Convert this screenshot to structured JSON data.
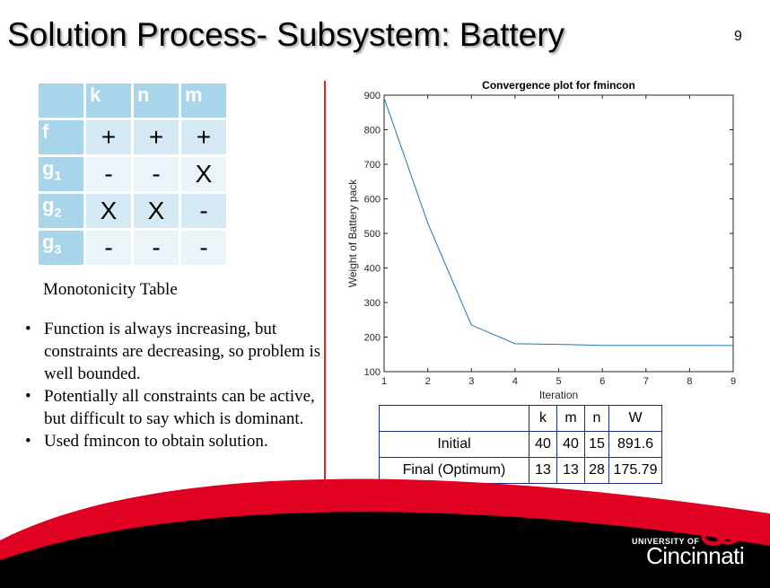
{
  "title": "Solution Process- Subsystem: Battery",
  "page_number": "9",
  "monotonicity": {
    "header": [
      "",
      "k",
      "n",
      "m"
    ],
    "rows": [
      {
        "label": "f",
        "sub": "",
        "cells": [
          "+",
          "+",
          "+"
        ]
      },
      {
        "label": "g",
        "sub": "1",
        "cells": [
          "-",
          "-",
          "X"
        ]
      },
      {
        "label": "g",
        "sub": "2",
        "cells": [
          "X",
          "X",
          "-"
        ]
      },
      {
        "label": "g",
        "sub": "3",
        "cells": [
          "-",
          "-",
          "-"
        ]
      }
    ],
    "caption": "Monotonicity Table"
  },
  "bullets": [
    "Function is always increasing, but constraints are decreasing, so problem is well bounded.",
    "Potentially all constraints can be active, but difficult to say which is dominant.",
    "Used fmincon to obtain solution."
  ],
  "chart_data": {
    "type": "line",
    "title": "Convergence plot for fmincon",
    "xlabel": "Iteration",
    "ylabel": "Weight of Battery pack",
    "xlim": [
      1,
      9
    ],
    "ylim": [
      100,
      900
    ],
    "xticks": [
      1,
      2,
      3,
      4,
      5,
      6,
      7,
      8,
      9
    ],
    "yticks": [
      100,
      200,
      300,
      400,
      500,
      600,
      700,
      800,
      900
    ],
    "grid": false,
    "series": [
      {
        "x": [
          1,
          2,
          3,
          4,
          5,
          6,
          7,
          8,
          9
        ],
        "y": [
          891.6,
          530,
          235,
          181,
          179,
          176,
          176,
          176,
          175.79
        ],
        "color": "#1f77b4"
      }
    ]
  },
  "results": {
    "header": [
      "",
      "k",
      "m",
      "n",
      "W"
    ],
    "rows": [
      [
        "Initial",
        "40",
        "40",
        "15",
        "891.6"
      ],
      [
        "Final (Optimum)",
        "13",
        "13",
        "28",
        "175.79"
      ]
    ]
  },
  "footer": {
    "university_line": "UNIVERSITY OF",
    "university_name": "Cincinnati",
    "colors": {
      "red": "#e00122",
      "black": "#000000"
    }
  }
}
